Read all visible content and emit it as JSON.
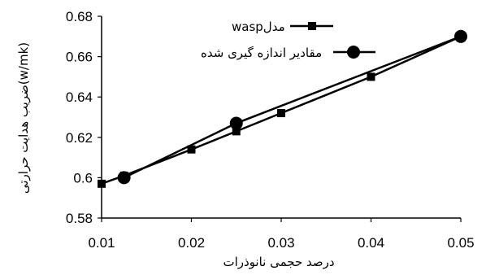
{
  "chart_data": {
    "type": "line",
    "xlabel": "درصد حجمی نانوذرات",
    "ylabel": "ضریب هدایت حرارتی(w/mk)",
    "xlim": [
      0.01,
      0.05
    ],
    "ylim": [
      0.58,
      0.68
    ],
    "x_ticks": [
      "0.01",
      "0.02",
      "0.03",
      "0.04",
      "0.05"
    ],
    "y_ticks": [
      "0.58",
      "0.6",
      "0.62",
      "0.64",
      "0.66",
      "0.68"
    ],
    "grid": false,
    "legend_position": "top-left",
    "series": [
      {
        "name": "waspمدل",
        "marker": "square",
        "color": "#000000",
        "points": [
          {
            "x": 0.01,
            "y": 0.597
          },
          {
            "x": 0.0125,
            "y": 0.601
          },
          {
            "x": 0.02,
            "y": 0.614
          },
          {
            "x": 0.025,
            "y": 0.623
          },
          {
            "x": 0.03,
            "y": 0.632
          },
          {
            "x": 0.04,
            "y": 0.65
          },
          {
            "x": 0.05,
            "y": 0.67
          }
        ]
      },
      {
        "name": "مقادیر اندازه گیری شده",
        "marker": "circle",
        "color": "#000000",
        "points": [
          {
            "x": 0.0125,
            "y": 0.6
          },
          {
            "x": 0.025,
            "y": 0.627
          },
          {
            "x": 0.05,
            "y": 0.67
          }
        ]
      }
    ]
  }
}
